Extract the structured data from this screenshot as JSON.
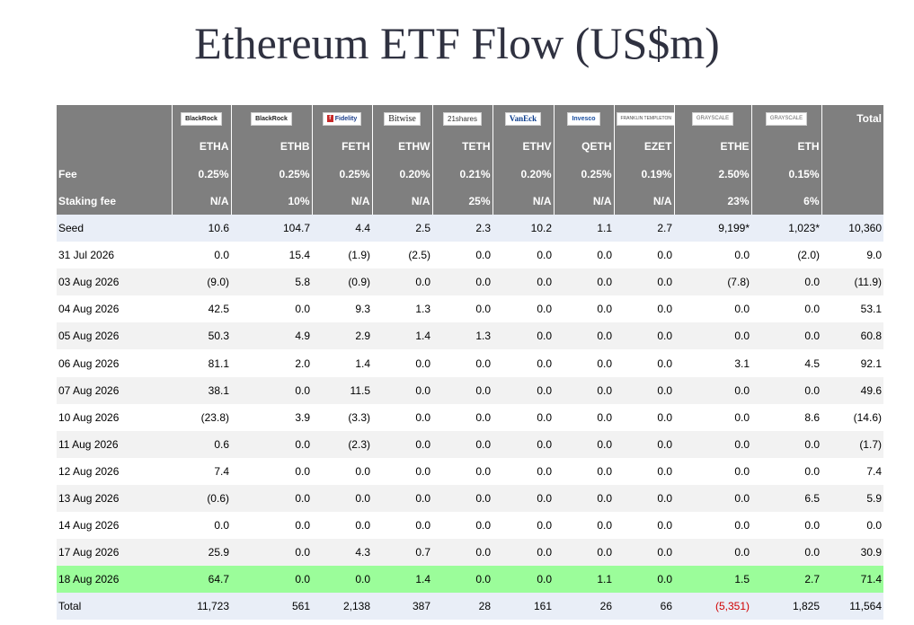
{
  "title": "Ethereum ETF Flow (US$m)",
  "table": {
    "logos": [
      {
        "text": "BlackRock",
        "style": ""
      },
      {
        "text": "BlackRock",
        "style": ""
      },
      {
        "text": "Fidelity",
        "style": "fid"
      },
      {
        "text": "Bitwise",
        "style": "bitwise"
      },
      {
        "text": "21shares",
        "style": "shares"
      },
      {
        "text": "VanEck",
        "style": "vaneck"
      },
      {
        "text": "Invesco",
        "style": "invesco"
      },
      {
        "text": "FRANKLIN TEMPLETON",
        "style": "franklin"
      },
      {
        "text": "GRAYSCALE",
        "style": "gray"
      },
      {
        "text": "GRAYSCALE",
        "style": "gray"
      }
    ],
    "total_header": "Total",
    "tickers": [
      "ETHA",
      "ETHB",
      "FETH",
      "ETHW",
      "TETH",
      "ETHV",
      "QETH",
      "EZET",
      "ETHE",
      "ETH"
    ],
    "fee_label": "Fee",
    "fees": [
      "0.25%",
      "0.25%",
      "0.25%",
      "0.20%",
      "0.21%",
      "0.20%",
      "0.25%",
      "0.19%",
      "2.50%",
      "0.15%"
    ],
    "staking_label": "Staking fee",
    "staking": [
      "N/A",
      "10%",
      "N/A",
      "N/A",
      "25%",
      "N/A",
      "N/A",
      "N/A",
      "23%",
      "6%"
    ],
    "rows": [
      {
        "date": "Seed",
        "values": [
          "10.6",
          "104.7",
          "4.4",
          "2.5",
          "2.3",
          "10.2",
          "1.1",
          "2.7",
          "9,199*",
          "1,023*"
        ],
        "total": "10,360"
      },
      {
        "date": "31 Jul 2026",
        "values": [
          "0.0",
          "15.4",
          "(1.9)",
          "(2.5)",
          "0.0",
          "0.0",
          "0.0",
          "0.0",
          "0.0",
          "(2.0)"
        ],
        "total": "9.0"
      },
      {
        "date": "03 Aug 2026",
        "values": [
          "(9.0)",
          "5.8",
          "(0.9)",
          "0.0",
          "0.0",
          "0.0",
          "0.0",
          "0.0",
          "(7.8)",
          "0.0"
        ],
        "total": "(11.9)"
      },
      {
        "date": "04 Aug 2026",
        "values": [
          "42.5",
          "0.0",
          "9.3",
          "1.3",
          "0.0",
          "0.0",
          "0.0",
          "0.0",
          "0.0",
          "0.0"
        ],
        "total": "53.1"
      },
      {
        "date": "05 Aug 2026",
        "values": [
          "50.3",
          "4.9",
          "2.9",
          "1.4",
          "1.3",
          "0.0",
          "0.0",
          "0.0",
          "0.0",
          "0.0"
        ],
        "total": "60.8"
      },
      {
        "date": "06 Aug 2026",
        "values": [
          "81.1",
          "2.0",
          "1.4",
          "0.0",
          "0.0",
          "0.0",
          "0.0",
          "0.0",
          "3.1",
          "4.5"
        ],
        "total": "92.1"
      },
      {
        "date": "07 Aug 2026",
        "values": [
          "38.1",
          "0.0",
          "11.5",
          "0.0",
          "0.0",
          "0.0",
          "0.0",
          "0.0",
          "0.0",
          "0.0"
        ],
        "total": "49.6"
      },
      {
        "date": "10 Aug 2026",
        "values": [
          "(23.8)",
          "3.9",
          "(3.3)",
          "0.0",
          "0.0",
          "0.0",
          "0.0",
          "0.0",
          "0.0",
          "8.6"
        ],
        "total": "(14.6)"
      },
      {
        "date": "11 Aug 2026",
        "values": [
          "0.6",
          "0.0",
          "(2.3)",
          "0.0",
          "0.0",
          "0.0",
          "0.0",
          "0.0",
          "0.0",
          "0.0"
        ],
        "total": "(1.7)"
      },
      {
        "date": "12 Aug 2026",
        "values": [
          "7.4",
          "0.0",
          "0.0",
          "0.0",
          "0.0",
          "0.0",
          "0.0",
          "0.0",
          "0.0",
          "0.0"
        ],
        "total": "7.4"
      },
      {
        "date": "13 Aug 2026",
        "values": [
          "(0.6)",
          "0.0",
          "0.0",
          "0.0",
          "0.0",
          "0.0",
          "0.0",
          "0.0",
          "0.0",
          "6.5"
        ],
        "total": "5.9"
      },
      {
        "date": "14 Aug 2026",
        "values": [
          "0.0",
          "0.0",
          "0.0",
          "0.0",
          "0.0",
          "0.0",
          "0.0",
          "0.0",
          "0.0",
          "0.0"
        ],
        "total": "0.0"
      },
      {
        "date": "17 Aug 2026",
        "values": [
          "25.9",
          "0.0",
          "4.3",
          "0.7",
          "0.0",
          "0.0",
          "0.0",
          "0.0",
          "0.0",
          "0.0"
        ],
        "total": "30.9"
      },
      {
        "date": "18 Aug 2026",
        "values": [
          "64.7",
          "0.0",
          "0.0",
          "1.4",
          "0.0",
          "0.0",
          "1.1",
          "0.0",
          "1.5",
          "2.7"
        ],
        "total": "71.4"
      }
    ],
    "total_row": {
      "label": "Total",
      "values": [
        "11,723",
        "561",
        "2,138",
        "387",
        "28",
        "161",
        "26",
        "66",
        "(5,351)",
        "1,825"
      ],
      "total": "11,564"
    },
    "colors": {
      "header_bg": "#7f7f7f",
      "alt_row": "#e9eef7",
      "highlight_row": "#9bfd9a",
      "negative": "#d00000",
      "zero": "#c4c4c4"
    }
  }
}
